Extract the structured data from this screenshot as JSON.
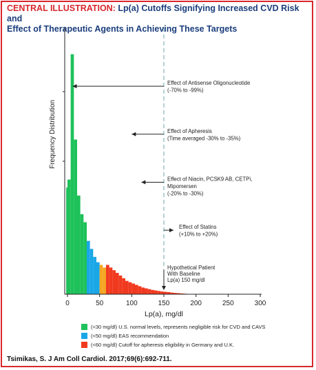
{
  "title": {
    "prefix": "CENTRAL ILLUSTRATION:",
    "rest_line1": " Lp(a) Cutoffs Signifying Increased CVD Risk and",
    "line2": "Effect of Therapeutic Agents in Achieving These Targets"
  },
  "chart_data": {
    "type": "bar",
    "xlabel": "Lp(a), mg/dl",
    "ylabel": "Frequency Distribution",
    "xlim": [
      -5,
      300
    ],
    "x_ticks": [
      "0",
      "50",
      "100",
      "150",
      "200",
      "250",
      "300"
    ],
    "y_unit": "relative frequency (0-100)",
    "bin_width": 5,
    "bins": [
      {
        "x0": -2,
        "x1": 0,
        "value": 40,
        "color": "green"
      },
      {
        "x0": 0,
        "x1": 5,
        "value": 43,
        "color": "green"
      },
      {
        "x0": 5,
        "x1": 10,
        "value": 90,
        "color": "green"
      },
      {
        "x0": 10,
        "x1": 15,
        "value": 58,
        "color": "green"
      },
      {
        "x0": 15,
        "x1": 20,
        "value": 37,
        "color": "green"
      },
      {
        "x0": 20,
        "x1": 25,
        "value": 30,
        "color": "green"
      },
      {
        "x0": 25,
        "x1": 30,
        "value": 27,
        "color": "green"
      },
      {
        "x0": 30,
        "x1": 35,
        "value": 20,
        "color": "blue"
      },
      {
        "x0": 35,
        "x1": 40,
        "value": 17,
        "color": "blue"
      },
      {
        "x0": 40,
        "x1": 45,
        "value": 14,
        "color": "blue"
      },
      {
        "x0": 45,
        "x1": 50,
        "value": 12,
        "color": "blue"
      },
      {
        "x0": 50,
        "x1": 55,
        "value": 11,
        "color": "orange"
      },
      {
        "x0": 55,
        "x1": 60,
        "value": 10,
        "color": "orange"
      },
      {
        "x0": 60,
        "x1": 65,
        "value": 11,
        "color": "red"
      },
      {
        "x0": 65,
        "x1": 70,
        "value": 10,
        "color": "red"
      },
      {
        "x0": 70,
        "x1": 75,
        "value": 9,
        "color": "red"
      },
      {
        "x0": 75,
        "x1": 80,
        "value": 8,
        "color": "red"
      },
      {
        "x0": 80,
        "x1": 85,
        "value": 7,
        "color": "red"
      },
      {
        "x0": 85,
        "x1": 90,
        "value": 6,
        "color": "red"
      },
      {
        "x0": 90,
        "x1": 95,
        "value": 5,
        "color": "red"
      },
      {
        "x0": 95,
        "x1": 100,
        "value": 4.5,
        "color": "red"
      },
      {
        "x0": 100,
        "x1": 105,
        "value": 4,
        "color": "red"
      },
      {
        "x0": 105,
        "x1": 110,
        "value": 3.5,
        "color": "red"
      },
      {
        "x0": 110,
        "x1": 115,
        "value": 3,
        "color": "red"
      },
      {
        "x0": 115,
        "x1": 120,
        "value": 2.5,
        "color": "red"
      },
      {
        "x0": 120,
        "x1": 125,
        "value": 2.2,
        "color": "red"
      },
      {
        "x0": 125,
        "x1": 130,
        "value": 1.9,
        "color": "red"
      },
      {
        "x0": 130,
        "x1": 135,
        "value": 1.6,
        "color": "red"
      },
      {
        "x0": 135,
        "x1": 140,
        "value": 1.4,
        "color": "red"
      },
      {
        "x0": 140,
        "x1": 145,
        "value": 1.2,
        "color": "red"
      },
      {
        "x0": 145,
        "x1": 150,
        "value": 1.0,
        "color": "red"
      },
      {
        "x0": 150,
        "x1": 155,
        "value": 0.9,
        "color": "red"
      },
      {
        "x0": 155,
        "x1": 160,
        "value": 0.8,
        "color": "red"
      },
      {
        "x0": 160,
        "x1": 165,
        "value": 0.6,
        "color": "red"
      },
      {
        "x0": 165,
        "x1": 170,
        "value": 0.5,
        "color": "red"
      },
      {
        "x0": 170,
        "x1": 175,
        "value": 0.4,
        "color": "red"
      },
      {
        "x0": 175,
        "x1": 180,
        "value": 0.3,
        "color": "red"
      },
      {
        "x0": 180,
        "x1": 185,
        "value": 0.2,
        "color": "red"
      }
    ],
    "colors": {
      "green": "#1ec15a",
      "blue": "#1aa7e8",
      "orange": "#f5a623",
      "red": "#f03a1f",
      "reference_line": "#6fa3a8",
      "text": "#222222"
    },
    "reference_line_x": 150,
    "annotations": [
      {
        "lines": [
          "Effect of Antisense Oligonucleotide",
          "(-70% to -99%)"
        ],
        "arrow_from": 150,
        "arrow_to": 8,
        "y": 78
      },
      {
        "lines": [
          "Effect of Apheresis",
          "(Time averaged -30% to -35%)"
        ],
        "arrow_from": 150,
        "arrow_to": 100,
        "y": 60
      },
      {
        "lines": [
          "Effect of Niacin, PCSK9 AB, CETPi,",
          "Mipomersen",
          "(-20% to -30%)"
        ],
        "arrow_from": 150,
        "arrow_to": 115,
        "y": 42
      },
      {
        "lines": [
          "Effect of Statins",
          "(+10% to +20%)"
        ],
        "arrow_from": 150,
        "arrow_to": 165,
        "y": 24
      }
    ],
    "patient_label": [
      "Hypothetical Patient",
      "With Baseline",
      "Lp(a) 150 mg/dl"
    ]
  },
  "legend": [
    {
      "text": "(<30 mg/dl) U.S. normal levels, represents negligible risk for CVD and CAVS",
      "color": "#1ec15a"
    },
    {
      "text": "(<50 mg/dl) EAS recommendation",
      "color": "#1aa7e8"
    },
    {
      "text": "(<60 mg/dl) Cutoff for apheresis eligibility in Germany and U.K.",
      "color": "#f03a1f"
    }
  ],
  "citation": "Tsimikas, S. J Am Coll Cardiol. 2017;69(6):692-711."
}
